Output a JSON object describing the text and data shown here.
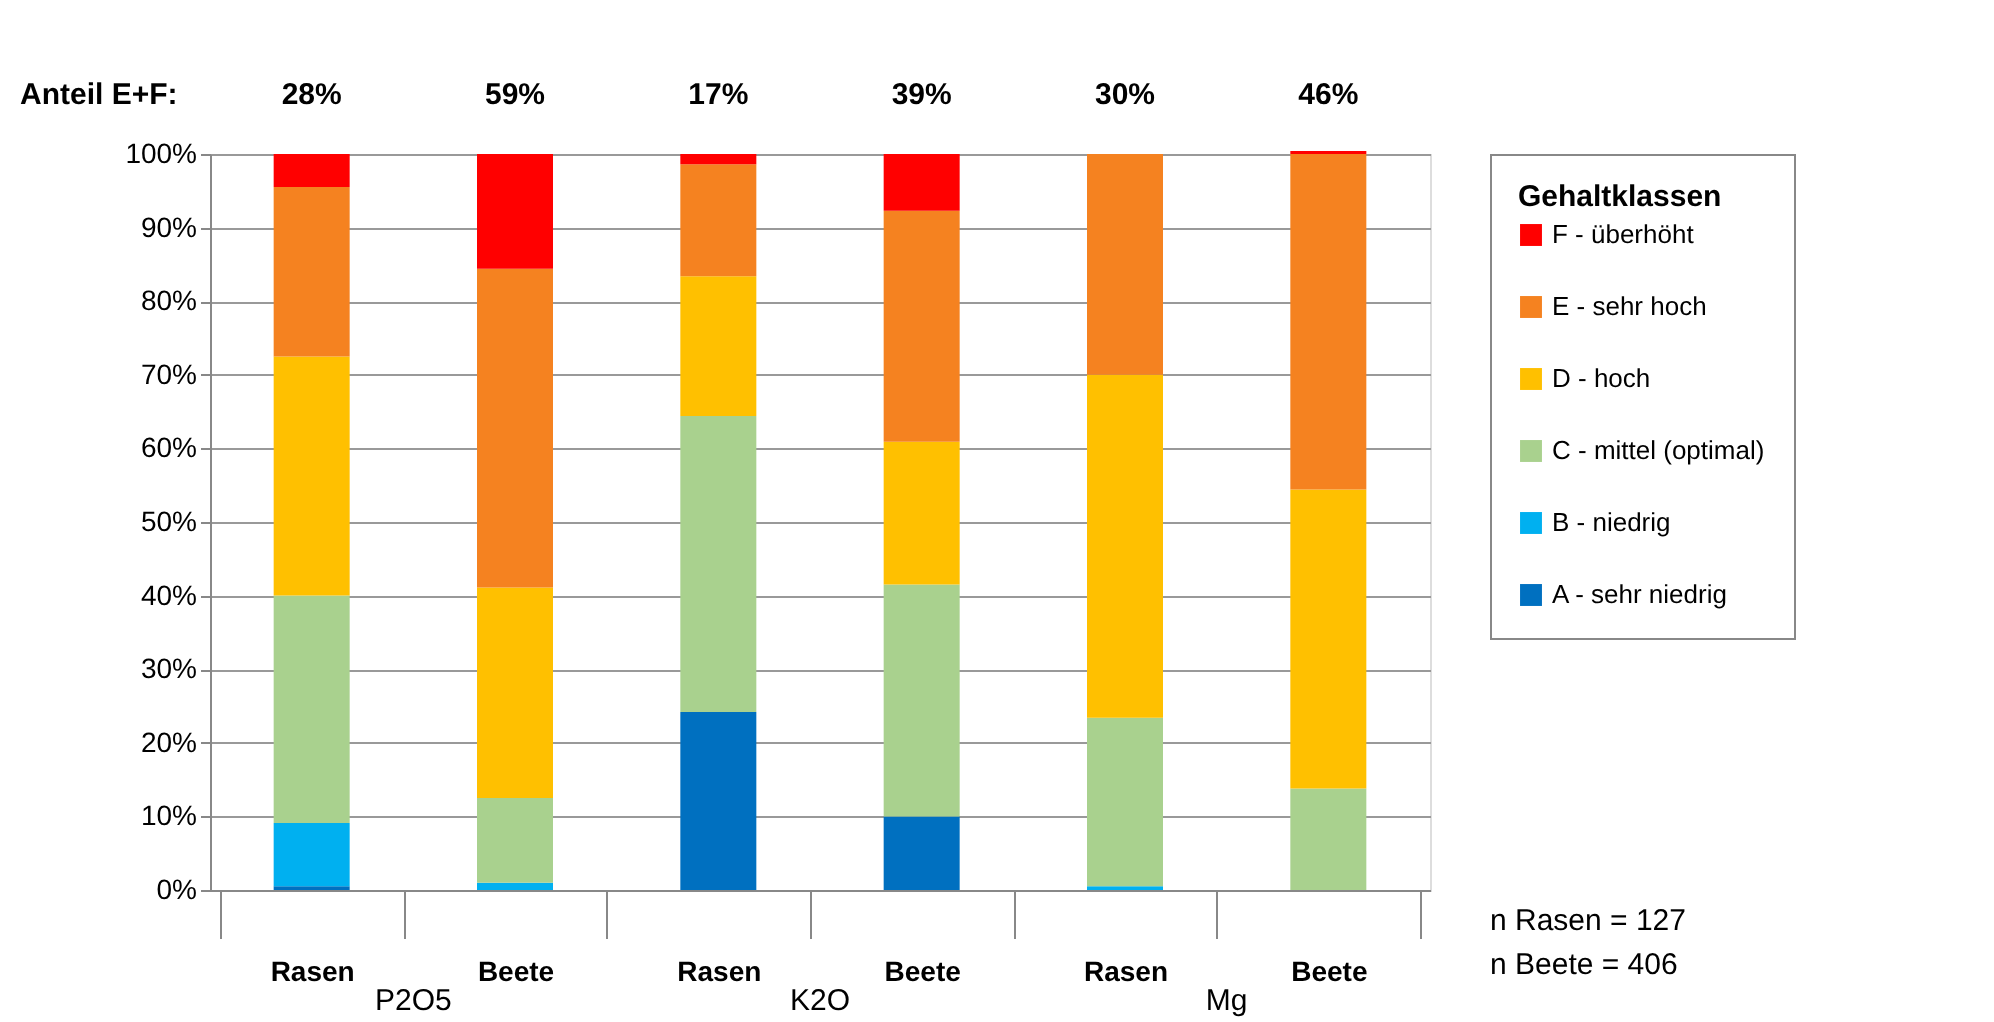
{
  "chart_data": {
    "type": "bar",
    "stacked": true,
    "legend_title": "Gehaltklassen",
    "categories": [
      "Rasen",
      "Beete",
      "Rasen",
      "Beete",
      "Rasen",
      "Beete"
    ],
    "series": [
      {
        "name": "A - sehr niedrig",
        "color": "#0070c0",
        "values": [
          0.5,
          0,
          24.2,
          10,
          0,
          0
        ]
      },
      {
        "name": "B - niedrig",
        "color": "#00b0f0",
        "values": [
          8.6,
          1,
          0,
          0,
          0.5,
          0
        ]
      },
      {
        "name": "C - mittel (optimal)",
        "color": "#a9d18e",
        "values": [
          30.9,
          11.5,
          40.2,
          31.5,
          22.9,
          13.8
        ]
      },
      {
        "name": "D - hoch",
        "color": "#ffc000",
        "values": [
          32.5,
          28.6,
          19,
          19.4,
          46.6,
          40.6
        ]
      },
      {
        "name": "E - sehr hoch",
        "color": "#f58220",
        "values": [
          23,
          43.3,
          15.2,
          31.4,
          30,
          45.6
        ]
      },
      {
        "name": "F - überhöht",
        "color": "#ff0000",
        "values": [
          4.5,
          15.6,
          1.4,
          7.7,
          0,
          0.4
        ]
      }
    ],
    "ylim": [
      0,
      100
    ],
    "yticks": [
      {
        "value": 0,
        "label": "0%"
      },
      {
        "value": 10,
        "label": "10%"
      },
      {
        "value": 20,
        "label": "20%"
      },
      {
        "value": 30,
        "label": "30%"
      },
      {
        "value": 40,
        "label": "40%"
      },
      {
        "value": 50,
        "label": "50%"
      },
      {
        "value": 60,
        "label": "60%"
      },
      {
        "value": 70,
        "label": "70%"
      },
      {
        "value": 80,
        "label": "80%"
      },
      {
        "value": 90,
        "label": "90%"
      },
      {
        "value": 100,
        "label": "100%"
      }
    ],
    "grid": "y",
    "legend": "right",
    "annotations": [
      "Anteil  E+F:",
      "28%",
      "59%",
      "17%",
      "39%",
      "30%",
      "46%",
      "P2O5",
      "K2O",
      "Mg",
      "n Rasen = 127",
      "n Beete = 406"
    ]
  }
}
